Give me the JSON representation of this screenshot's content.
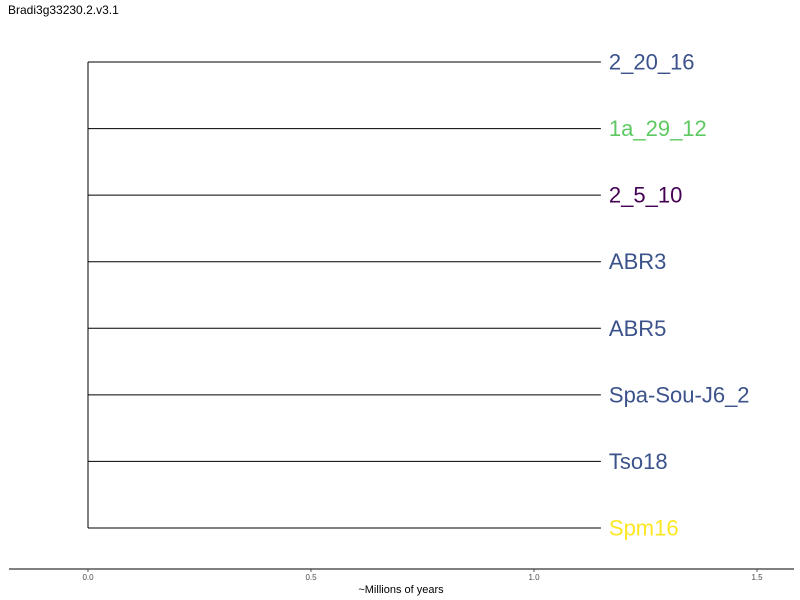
{
  "title": "Bradi3g33230.2.v3.1",
  "chart_data": {
    "type": "dendrogram",
    "title": "Bradi3g33230.2.v3.1",
    "xlabel": "~Millions of years",
    "xlim": [
      0.0,
      1.5
    ],
    "x_ticks": [
      "0.0",
      "0.5",
      "1.0",
      "1.5"
    ],
    "x_tick_values": [
      0.0,
      0.5,
      1.0,
      1.5
    ],
    "root_x": 0.0,
    "tip_x": 1.15,
    "grid": false,
    "leaves": [
      {
        "name": "2_20_16",
        "color": "#3b528b"
      },
      {
        "name": "1a_29_12",
        "color": "#5ec962"
      },
      {
        "name": "2_5_10",
        "color": "#440154"
      },
      {
        "name": "ABR3",
        "color": "#3b528b"
      },
      {
        "name": "ABR5",
        "color": "#3b528b"
      },
      {
        "name": "Spa-Sou-J6_2",
        "color": "#3b528b"
      },
      {
        "name": "Tso18",
        "color": "#3b528b"
      },
      {
        "name": "Spm16",
        "color": "#fde725"
      }
    ]
  }
}
